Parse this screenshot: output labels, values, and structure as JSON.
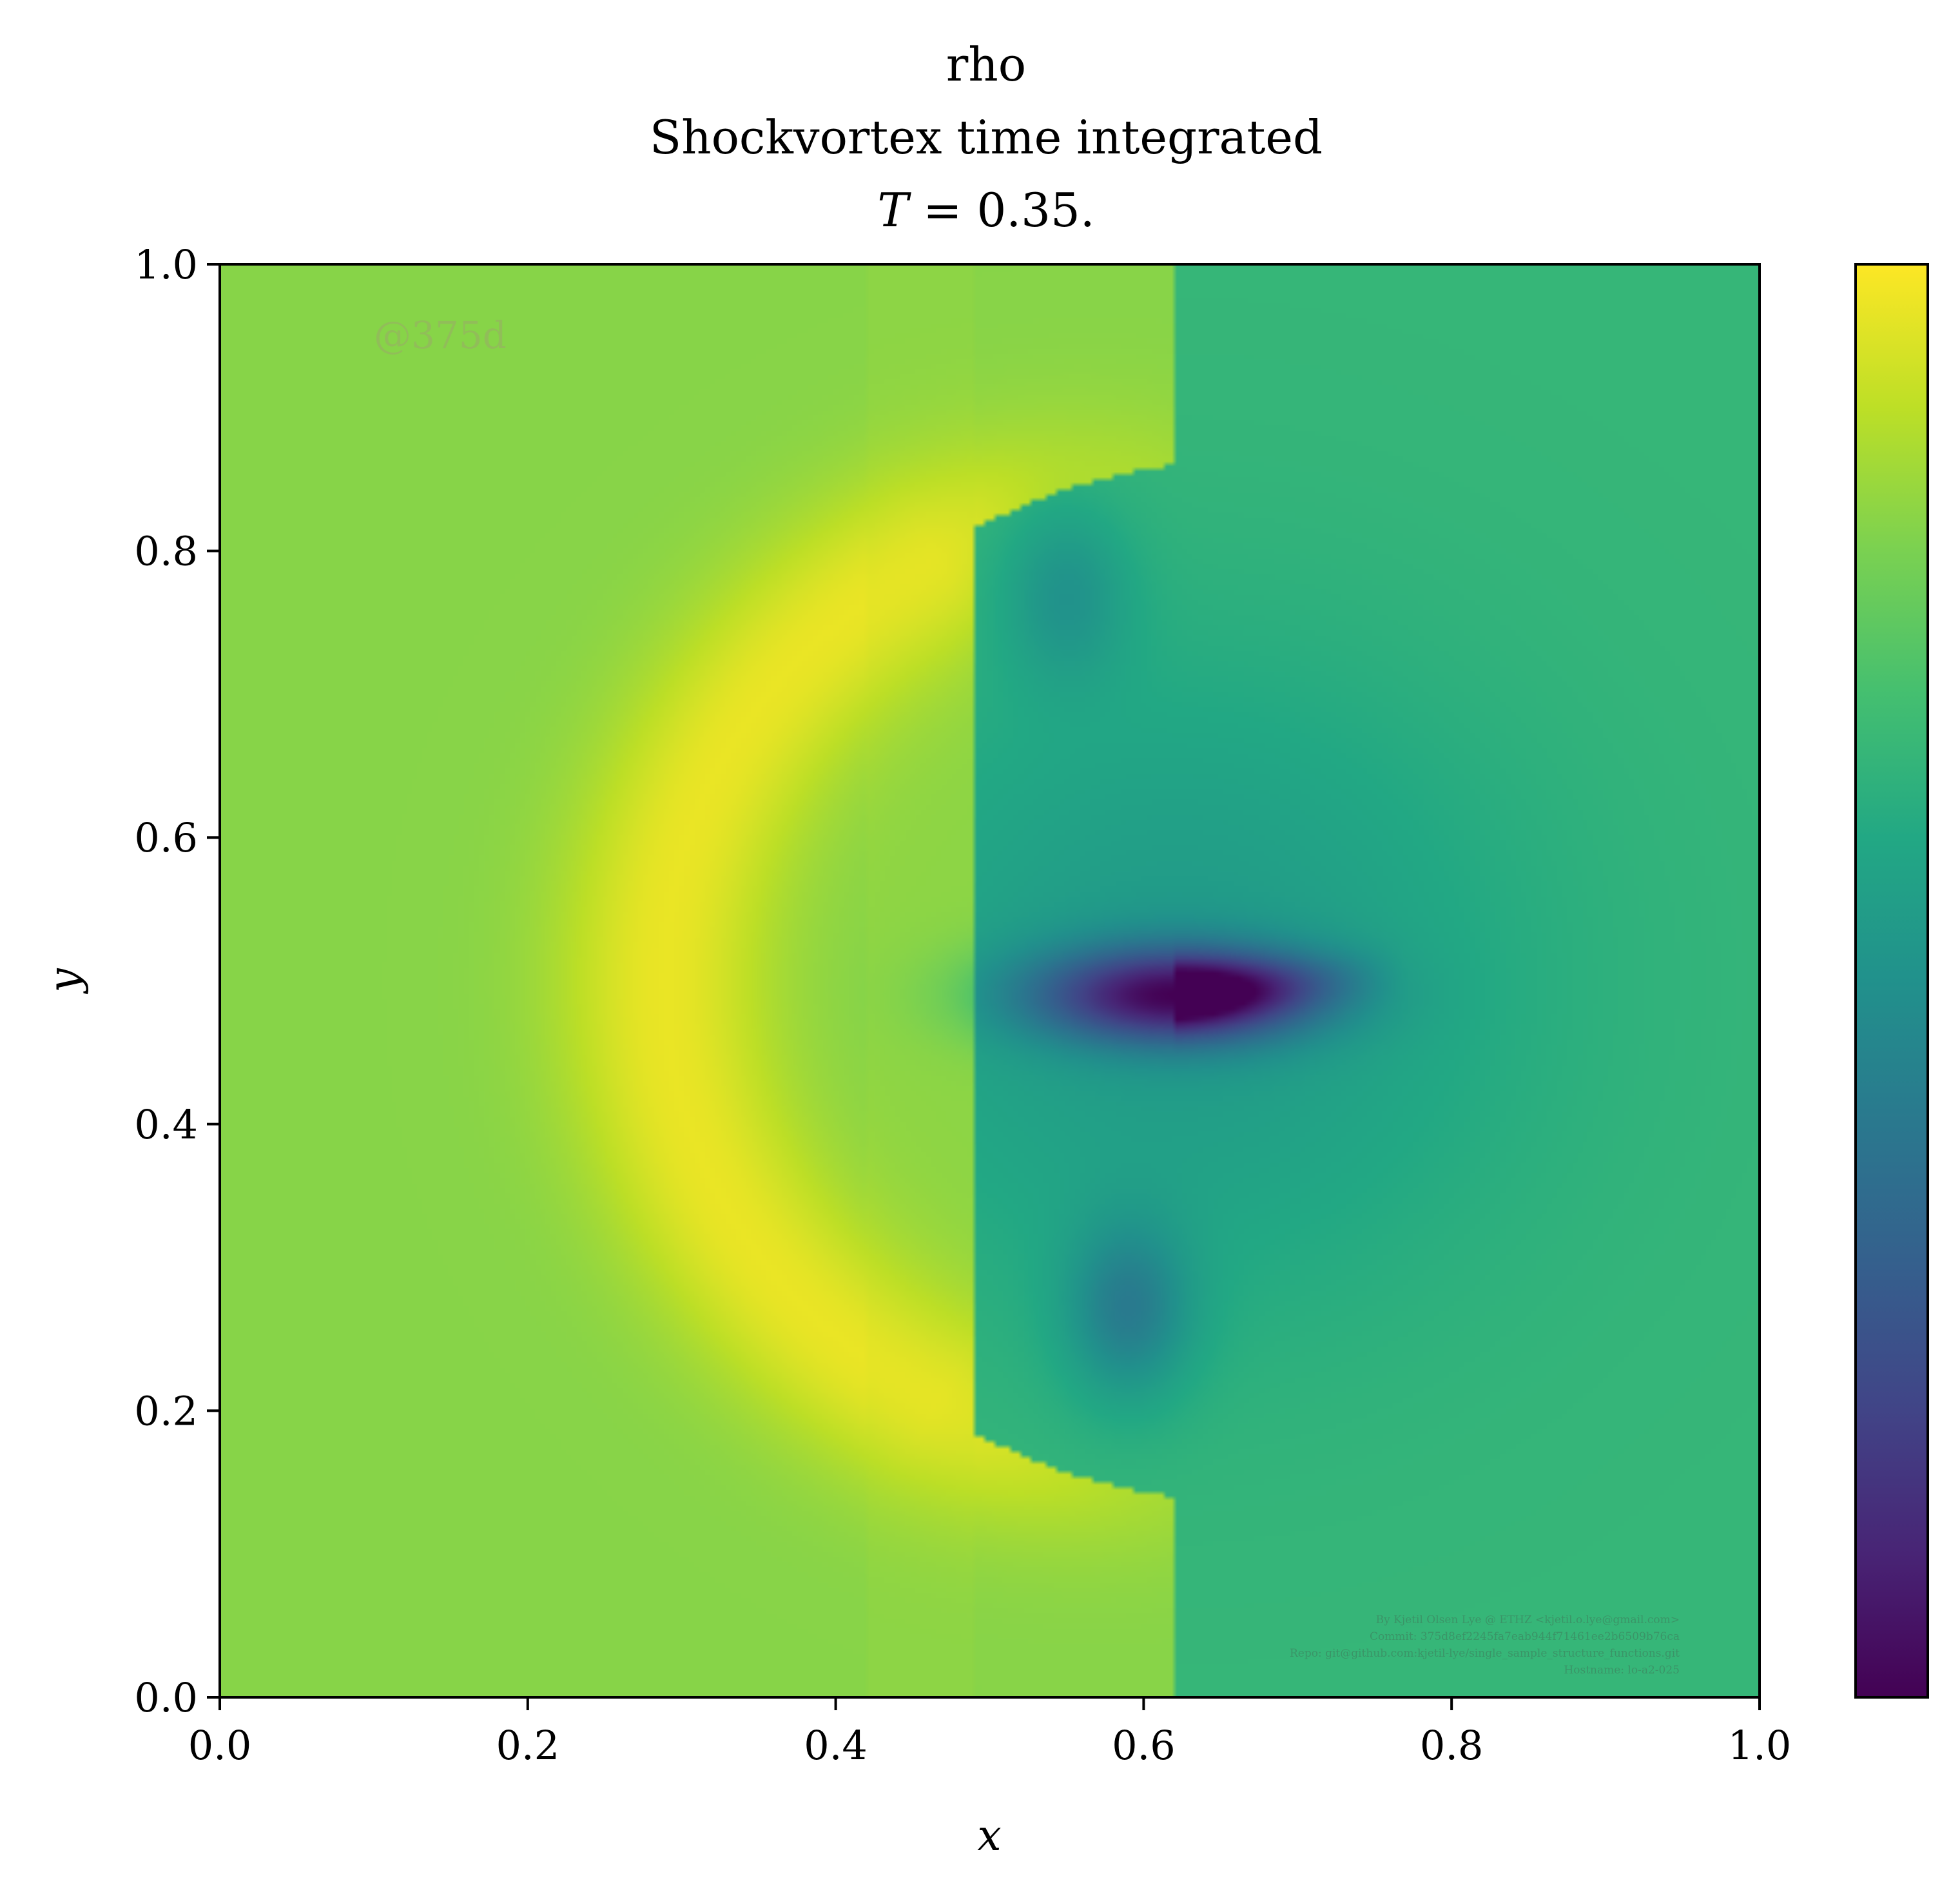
{
  "chart_data": {
    "type": "heatmap",
    "title_lines": [
      "rho",
      "Shockvortex time integrated",
      "T = 0.35."
    ],
    "title_var": "T",
    "title_rest": " = 0.35.",
    "xlabel": "x",
    "ylabel": "y",
    "xlim": [
      0.0,
      1.0
    ],
    "ylim": [
      0.0,
      1.0
    ],
    "x_ticks": [
      "0.0",
      "0.2",
      "0.4",
      "0.6",
      "0.8",
      "1.0"
    ],
    "y_ticks": [
      "0.0",
      "0.2",
      "0.4",
      "0.6",
      "0.8",
      "1.0"
    ],
    "colormap": "viridis",
    "colorbar_ticks": [],
    "watermark": "@375d",
    "credit_lines": [
      "By Kjetil Olsen Lye @ ETHZ <kjetil.o.lye@gmail.com>",
      "Commit: 375d8ef2245fa7eab944f71461ee2b6509b76ca",
      "Repo: git@github.com:kjetil-lye/single_sample_structure_functions.git",
      "Hostname: lo-a2-025"
    ],
    "features": [
      {
        "name": "shock arc (high density)",
        "center": [
          0.62,
          0.5
        ],
        "radius": 0.36,
        "value": 0.97
      },
      {
        "name": "vortex core (minimum)",
        "center": [
          0.62,
          0.49
        ],
        "value": 0.0
      },
      {
        "name": "lower lobe",
        "center": [
          0.59,
          0.27
        ],
        "value": 0.45
      },
      {
        "name": "upper lobe",
        "center": [
          0.55,
          0.77
        ],
        "value": 0.5
      }
    ],
    "background_levels": {
      "left_of_shock": 0.82,
      "right_far_field": 0.66
    },
    "value_range": [
      0.0,
      1.0
    ]
  }
}
